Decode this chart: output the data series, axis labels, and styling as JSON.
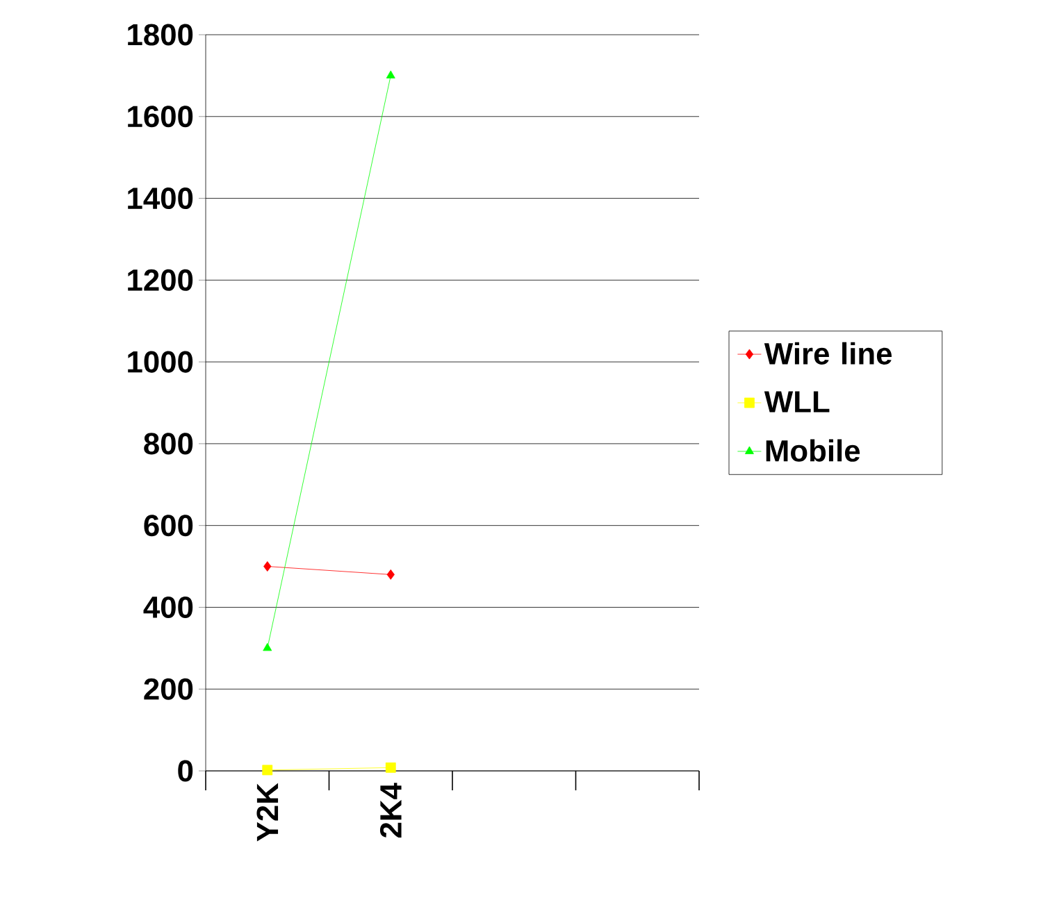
{
  "chart_data": {
    "type": "line",
    "categories": [
      "Y2K",
      "2K4",
      null,
      null
    ],
    "series": [
      {
        "name": "Wire line",
        "color": "#ff0000",
        "marker": "diamond",
        "values": [
          500,
          480,
          null,
          null
        ]
      },
      {
        "name": "WLL",
        "color": "#ffff00",
        "marker": "square",
        "values": [
          2,
          8,
          null,
          null
        ]
      },
      {
        "name": "Mobile",
        "color": "#00ff00",
        "marker": "triangle",
        "values": [
          300,
          1700,
          null,
          null
        ]
      }
    ],
    "ylim": [
      0,
      1800
    ],
    "yticks": [
      0,
      200,
      400,
      600,
      800,
      1000,
      1200,
      1400,
      1600,
      1800
    ],
    "grid": "y",
    "legend": "right"
  }
}
